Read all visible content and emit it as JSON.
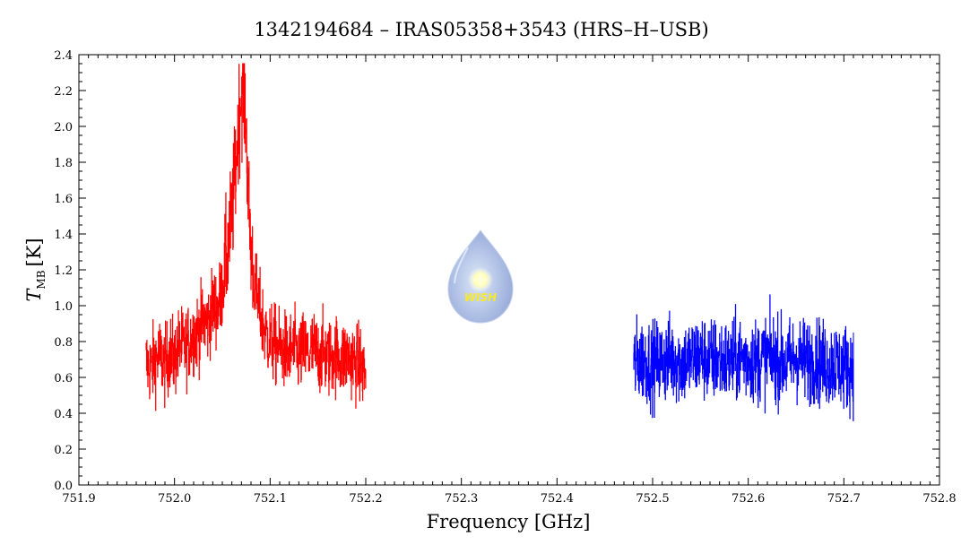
{
  "chart_data": {
    "type": "line",
    "title": "1342194684 – IRAS05358+3543 (HRS–H–USB)",
    "xlabel": "Frequency [GHz]",
    "ylabel": {
      "symbol": "T",
      "subscript": "MB",
      "unit": "[K]"
    },
    "xlim": [
      751.9,
      752.8
    ],
    "ylim": [
      0.0,
      2.4
    ],
    "xticks": [
      "751.9",
      "752.0",
      "752.1",
      "752.2",
      "752.3",
      "752.4",
      "752.5",
      "752.6",
      "752.7",
      "752.8"
    ],
    "yticks": [
      "0.0",
      "0.2",
      "0.4",
      "0.6",
      "0.8",
      "1.0",
      "1.2",
      "1.4",
      "1.6",
      "1.8",
      "2.0",
      "2.2",
      "2.4"
    ],
    "grid": false,
    "series": [
      {
        "color": "#ff0000",
        "x_range": [
          751.97,
          752.2
        ],
        "x": [
          751.97,
          751.975,
          751.98,
          751.985,
          751.99,
          751.995,
          752.0,
          752.005,
          752.01,
          752.015,
          752.02,
          752.025,
          752.03,
          752.035,
          752.04,
          752.045,
          752.05,
          752.055,
          752.06,
          752.063,
          752.066,
          752.068,
          752.07,
          752.072,
          752.074,
          752.076,
          752.078,
          752.08,
          752.083,
          752.086,
          752.09,
          752.095,
          752.1,
          752.105,
          752.11,
          752.115,
          752.12,
          752.125,
          752.13,
          752.135,
          752.14,
          752.145,
          752.15,
          752.155,
          752.16,
          752.165,
          752.17,
          752.175,
          752.18,
          752.185,
          752.19,
          752.195,
          752.2
        ],
        "y": [
          0.68,
          0.65,
          0.7,
          0.72,
          0.66,
          0.74,
          0.7,
          0.78,
          0.76,
          0.8,
          0.84,
          0.86,
          0.92,
          0.9,
          1.0,
          0.98,
          1.1,
          1.3,
          1.5,
          1.7,
          1.95,
          2.1,
          2.18,
          2.2,
          2.1,
          1.8,
          1.5,
          1.3,
          1.15,
          1.05,
          0.95,
          0.85,
          0.8,
          0.78,
          0.76,
          0.75,
          0.74,
          0.76,
          0.72,
          0.75,
          0.73,
          0.76,
          0.72,
          0.74,
          0.7,
          0.72,
          0.73,
          0.7,
          0.72,
          0.7,
          0.68,
          0.66,
          0.62
        ]
      },
      {
        "color": "#0000ff",
        "x_range": [
          752.48,
          752.71
        ],
        "x": [
          752.48,
          752.49,
          752.5,
          752.51,
          752.52,
          752.53,
          752.54,
          752.55,
          752.56,
          752.57,
          752.58,
          752.59,
          752.6,
          752.61,
          752.62,
          752.63,
          752.64,
          752.65,
          752.66,
          752.67,
          752.68,
          752.69,
          752.7,
          752.71
        ],
        "y": [
          0.68,
          0.7,
          0.67,
          0.69,
          0.71,
          0.68,
          0.7,
          0.72,
          0.69,
          0.7,
          0.68,
          0.71,
          0.7,
          0.69,
          0.72,
          0.7,
          0.68,
          0.71,
          0.69,
          0.7,
          0.67,
          0.68,
          0.66,
          0.65
        ]
      }
    ],
    "watermark": {
      "text": "WISH",
      "icon": "water-drop-star-logo"
    }
  }
}
